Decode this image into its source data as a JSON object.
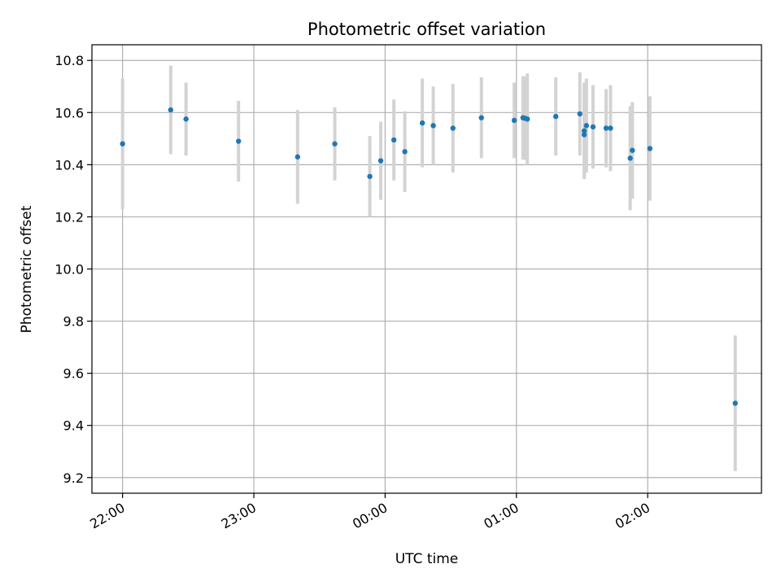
{
  "chart_data": {
    "type": "scatter",
    "title": "Photometric offset variation",
    "xlabel": "UTC time",
    "ylabel": "Photometric offset",
    "x_unit": "time of day (UTC), day boundary at 00:00",
    "xlim": [
      "21:46",
      "02:52"
    ],
    "ylim": [
      9.14,
      10.86
    ],
    "x_ticks": [
      "22:00",
      "23:00",
      "00:00",
      "01:00",
      "02:00"
    ],
    "y_ticks": [
      9.2,
      9.4,
      9.6,
      9.8,
      10.0,
      10.2,
      10.4,
      10.6,
      10.8
    ],
    "y_tick_labels": [
      "9.2",
      "9.4",
      "9.6",
      "9.8",
      "10.0",
      "10.2",
      "10.4",
      "10.6",
      "10.8"
    ],
    "grid": true,
    "legend": "none",
    "colors": {
      "point": "#1f77b4",
      "errorbar": "#d3d3d3",
      "grid": "#b0b0b0"
    },
    "points": [
      {
        "x": "22:00",
        "y": 10.48,
        "err": 0.25
      },
      {
        "x": "22:22",
        "y": 10.61,
        "err": 0.17
      },
      {
        "x": "22:29",
        "y": 10.575,
        "err": 0.14
      },
      {
        "x": "22:53",
        "y": 10.49,
        "err": 0.155
      },
      {
        "x": "23:20",
        "y": 10.43,
        "err": 0.18
      },
      {
        "x": "23:37",
        "y": 10.48,
        "err": 0.14
      },
      {
        "x": "23:53",
        "y": 10.355,
        "err": 0.155
      },
      {
        "x": "23:58",
        "y": 10.415,
        "err": 0.15
      },
      {
        "x": "00:04",
        "y": 10.495,
        "err": 0.155
      },
      {
        "x": "00:09",
        "y": 10.45,
        "err": 0.155
      },
      {
        "x": "00:17",
        "y": 10.56,
        "err": 0.17
      },
      {
        "x": "00:22",
        "y": 10.55,
        "err": 0.15
      },
      {
        "x": "00:31",
        "y": 10.54,
        "err": 0.17
      },
      {
        "x": "00:44",
        "y": 10.58,
        "err": 0.155
      },
      {
        "x": "00:59",
        "y": 10.57,
        "err": 0.145
      },
      {
        "x": "01:03",
        "y": 10.58,
        "err": 0.16
      },
      {
        "x": "01:04",
        "y": 10.578,
        "err": 0.16
      },
      {
        "x": "01:05",
        "y": 10.575,
        "err": 0.175
      },
      {
        "x": "01:18",
        "y": 10.585,
        "err": 0.15
      },
      {
        "x": "01:29",
        "y": 10.595,
        "err": 0.16
      },
      {
        "x": "01:31",
        "y": 10.515,
        "err": 0.165
      },
      {
        "x": "01:31",
        "y": 10.53,
        "err": 0.185
      },
      {
        "x": "01:32",
        "y": 10.55,
        "err": 0.18
      },
      {
        "x": "01:35",
        "y": 10.545,
        "err": 0.16
      },
      {
        "x": "01:41",
        "y": 10.54,
        "err": 0.15
      },
      {
        "x": "01:43",
        "y": 10.54,
        "err": 0.165
      },
      {
        "x": "01:52",
        "y": 10.425,
        "err": 0.2
      },
      {
        "x": "01:53",
        "y": 10.455,
        "err": 0.185
      },
      {
        "x": "02:01",
        "y": 10.462,
        "err": 0.2
      },
      {
        "x": "02:40",
        "y": 9.485,
        "err": 0.26
      }
    ]
  }
}
